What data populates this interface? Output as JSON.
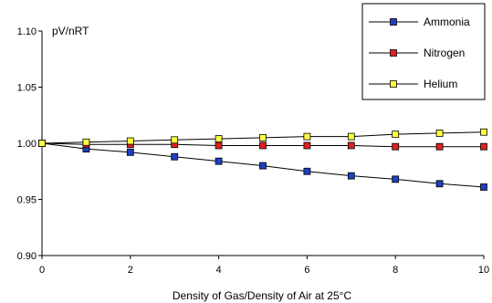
{
  "chart_data": {
    "type": "line",
    "title": "",
    "xlabel": "Density of Gas/Density of Air at 25°C",
    "ylabel": "pV/nRT",
    "xlim": [
      0,
      10
    ],
    "ylim": [
      0.9,
      1.1
    ],
    "x_ticks": [
      "0",
      "2",
      "4",
      "6",
      "8",
      "10"
    ],
    "y_ticks": [
      "0.90",
      "0.95",
      "1.00",
      "1.05",
      "1.10"
    ],
    "grid": false,
    "legend_position": "top-right",
    "x": [
      0,
      1,
      2,
      3,
      4,
      5,
      6,
      7,
      8,
      9,
      10
    ],
    "series": [
      {
        "name": "Ammonia",
        "color": "#1f3fbf",
        "values": [
          1.0,
          0.995,
          0.992,
          0.988,
          0.984,
          0.98,
          0.975,
          0.971,
          0.968,
          0.964,
          0.961
        ]
      },
      {
        "name": "Nitrogen",
        "color": "#e02020",
        "values": [
          1.0,
          0.999,
          0.999,
          0.999,
          0.998,
          0.998,
          0.998,
          0.998,
          0.997,
          0.997,
          0.997
        ]
      },
      {
        "name": "Helium",
        "color": "#ffff40",
        "values": [
          1.0,
          1.001,
          1.002,
          1.003,
          1.004,
          1.005,
          1.006,
          1.006,
          1.008,
          1.009,
          1.01
        ]
      }
    ]
  }
}
